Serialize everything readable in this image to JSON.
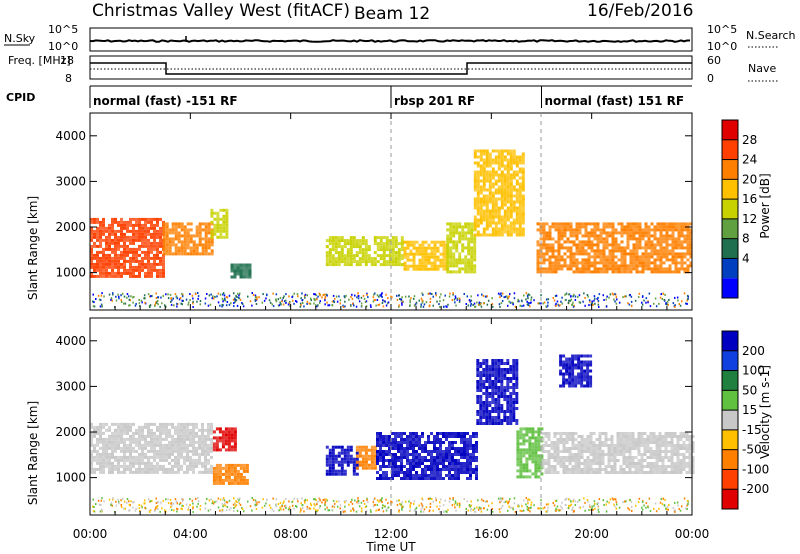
{
  "header": {
    "station": "Christmas Valley West (fitACF)",
    "beam": "Beam 12",
    "date": "16/Feb/2016"
  },
  "scan_panel": {
    "left_label": "N.Sky",
    "right_label": "N.Search",
    "left_ticks": [
      "10^5",
      "10^0"
    ],
    "right_ticks": [
      "10^5",
      "10^0"
    ]
  },
  "freq_panel": {
    "left_label": "Freq. [MHz]",
    "right_label": "Nave",
    "left_ticks": [
      "18",
      "8"
    ],
    "right_ticks": [
      "60",
      "0"
    ]
  },
  "cpid": {
    "label": "CPID",
    "segments": [
      {
        "text": "normal (fast) -151 RF",
        "start_hour": 0,
        "end_hour": 12
      },
      {
        "text": "rbsp 201 RF",
        "start_hour": 12,
        "end_hour": 18
      },
      {
        "text": "normal (fast) 151 RF",
        "start_hour": 18,
        "end_hour": 24
      }
    ]
  },
  "colorbars": {
    "power": {
      "label": "Power [dB]",
      "ticks": [
        "28",
        "24",
        "20",
        "16",
        "12",
        "8",
        "4"
      ],
      "colors": [
        "#e00000",
        "#ff4000",
        "#ff8000",
        "#ffc000",
        "#c8d200",
        "#60a040",
        "#207050",
        "#0040c0",
        "#0000ff"
      ]
    },
    "velocity": {
      "label": "Velocity [m s-1]",
      "ticks": [
        "200",
        "100",
        "50",
        "15",
        "-15",
        "-50",
        "-100",
        "-200"
      ],
      "colors": [
        "#0000c0",
        "#1040e0",
        "#208040",
        "#60c040",
        "#c8c8c8",
        "#ffc000",
        "#ff8000",
        "#ff4000",
        "#e00000"
      ]
    }
  },
  "chart_data": [
    {
      "type": "heatmap",
      "title": "Power",
      "xlabel": "Time UT",
      "ylabel": "Slant Range [km]",
      "x_ticks": [
        "00:00",
        "04:00",
        "08:00",
        "12:00",
        "16:00",
        "20:00",
        "00:00"
      ],
      "y_ticks": [
        1000,
        2000,
        3000,
        4000
      ],
      "xlim_hours": [
        0,
        24
      ],
      "ylim": [
        180,
        4500
      ],
      "patches": [
        {
          "t0": 0.0,
          "t1": 2.9,
          "r0": 900,
          "r1": 2200,
          "level": 26
        },
        {
          "t0": 2.9,
          "t1": 4.9,
          "r0": 1400,
          "r1": 2100,
          "level": 22
        },
        {
          "t0": 4.8,
          "t1": 5.4,
          "r0": 1800,
          "r1": 2400,
          "level": 14
        },
        {
          "t0": 5.6,
          "t1": 6.4,
          "r0": 900,
          "r1": 1200,
          "level": 8
        },
        {
          "t0": 9.4,
          "t1": 12.5,
          "r0": 1200,
          "r1": 1800,
          "level": 16
        },
        {
          "t0": 12.5,
          "t1": 14.2,
          "r0": 1100,
          "r1": 1700,
          "level": 18
        },
        {
          "t0": 14.2,
          "t1": 15.3,
          "r0": 1000,
          "r1": 2100,
          "level": 16
        },
        {
          "t0": 15.3,
          "t1": 17.3,
          "r0": 1800,
          "r1": 3700,
          "level": 20
        },
        {
          "t0": 17.8,
          "t1": 24.0,
          "r0": 1000,
          "r1": 2100,
          "level": 24
        }
      ]
    },
    {
      "type": "heatmap",
      "title": "Velocity",
      "xlabel": "Time UT",
      "ylabel": "Slant Range [km]",
      "x_ticks": [
        "00:00",
        "04:00",
        "08:00",
        "12:00",
        "16:00",
        "20:00",
        "00:00"
      ],
      "y_ticks": [
        1000,
        2000,
        3000,
        4000
      ],
      "xlim_hours": [
        0,
        24
      ],
      "ylim": [
        180,
        4500
      ],
      "patches": [
        {
          "t0": 0.0,
          "t1": 4.9,
          "r0": 1100,
          "r1": 2200,
          "velocity": 0
        },
        {
          "t0": 4.9,
          "t1": 5.8,
          "r0": 1600,
          "r1": 2100,
          "velocity": -200
        },
        {
          "t0": 4.9,
          "t1": 6.3,
          "r0": 900,
          "r1": 1300,
          "velocity": -60
        },
        {
          "t0": 9.4,
          "t1": 10.6,
          "r0": 1100,
          "r1": 1700,
          "velocity": 200
        },
        {
          "t0": 10.6,
          "t1": 11.4,
          "r0": 1200,
          "r1": 1700,
          "velocity": -60
        },
        {
          "t0": 11.4,
          "t1": 15.4,
          "r0": 1000,
          "r1": 2000,
          "velocity": 200
        },
        {
          "t0": 15.4,
          "t1": 17.0,
          "r0": 2200,
          "r1": 3600,
          "velocity": 180
        },
        {
          "t0": 17.0,
          "t1": 18.0,
          "r0": 1000,
          "r1": 2100,
          "velocity": 20
        },
        {
          "t0": 18.0,
          "t1": 24.0,
          "r0": 1100,
          "r1": 2000,
          "velocity": 0
        },
        {
          "t0": 18.7,
          "t1": 20.0,
          "r0": 3000,
          "r1": 3700,
          "velocity": 200
        }
      ]
    }
  ]
}
